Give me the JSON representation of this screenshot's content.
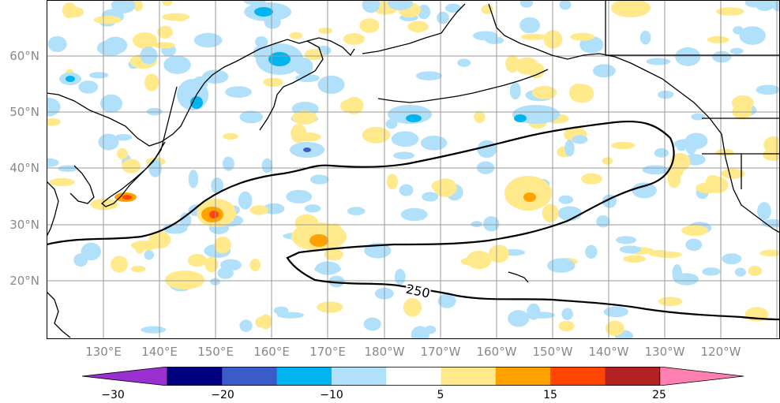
{
  "map": {
    "title": "",
    "lat_labels": [
      "60°N",
      "50°N",
      "40°N",
      "30°N",
      "20°N"
    ],
    "lon_labels": [
      "130°E",
      "140°E",
      "150°E",
      "160°E",
      "170°E",
      "180°W",
      "170°W",
      "160°W",
      "150°W",
      "140°W",
      "130°W",
      "120°W"
    ],
    "contour_label": "250"
  },
  "colorbar": {
    "colors": [
      "#9b30d0",
      "#000080",
      "#3a5cc8",
      "#00b4f0",
      "#b0e0fa",
      "#ffffff",
      "#ffe98a",
      "#ffa200",
      "#ff4500",
      "#b22222",
      "#ff80b0"
    ],
    "tick_labels": [
      "−30",
      "−20",
      "−10",
      "5",
      "15",
      "25"
    ]
  },
  "chart_data": {
    "type": "contour-map",
    "title": "",
    "region": "North Pacific",
    "lon_range": [
      "125°E",
      "115°W"
    ],
    "lat_range": [
      "10°N",
      "70°N"
    ],
    "contour_line": {
      "value": 250,
      "label": "250"
    },
    "colorbar_levels": [
      -30,
      -25,
      -20,
      -15,
      -10,
      -5,
      5,
      10,
      15,
      20,
      25
    ],
    "colorbar_ticks": [
      -30,
      -20,
      -10,
      5,
      15,
      25
    ],
    "features": [
      {
        "name": "positive anomaly",
        "region": "east of Japan",
        "peak_level": 20
      },
      {
        "name": "positive anomaly",
        "region": "central Pacific 25-35N",
        "peak_level": 15
      },
      {
        "name": "negative anomaly",
        "region": "Sea of Okhotsk / Kamchatka",
        "peak_level": -15
      },
      {
        "name": "negative anomaly",
        "region": "Aleutians",
        "peak_level": -15
      }
    ]
  }
}
